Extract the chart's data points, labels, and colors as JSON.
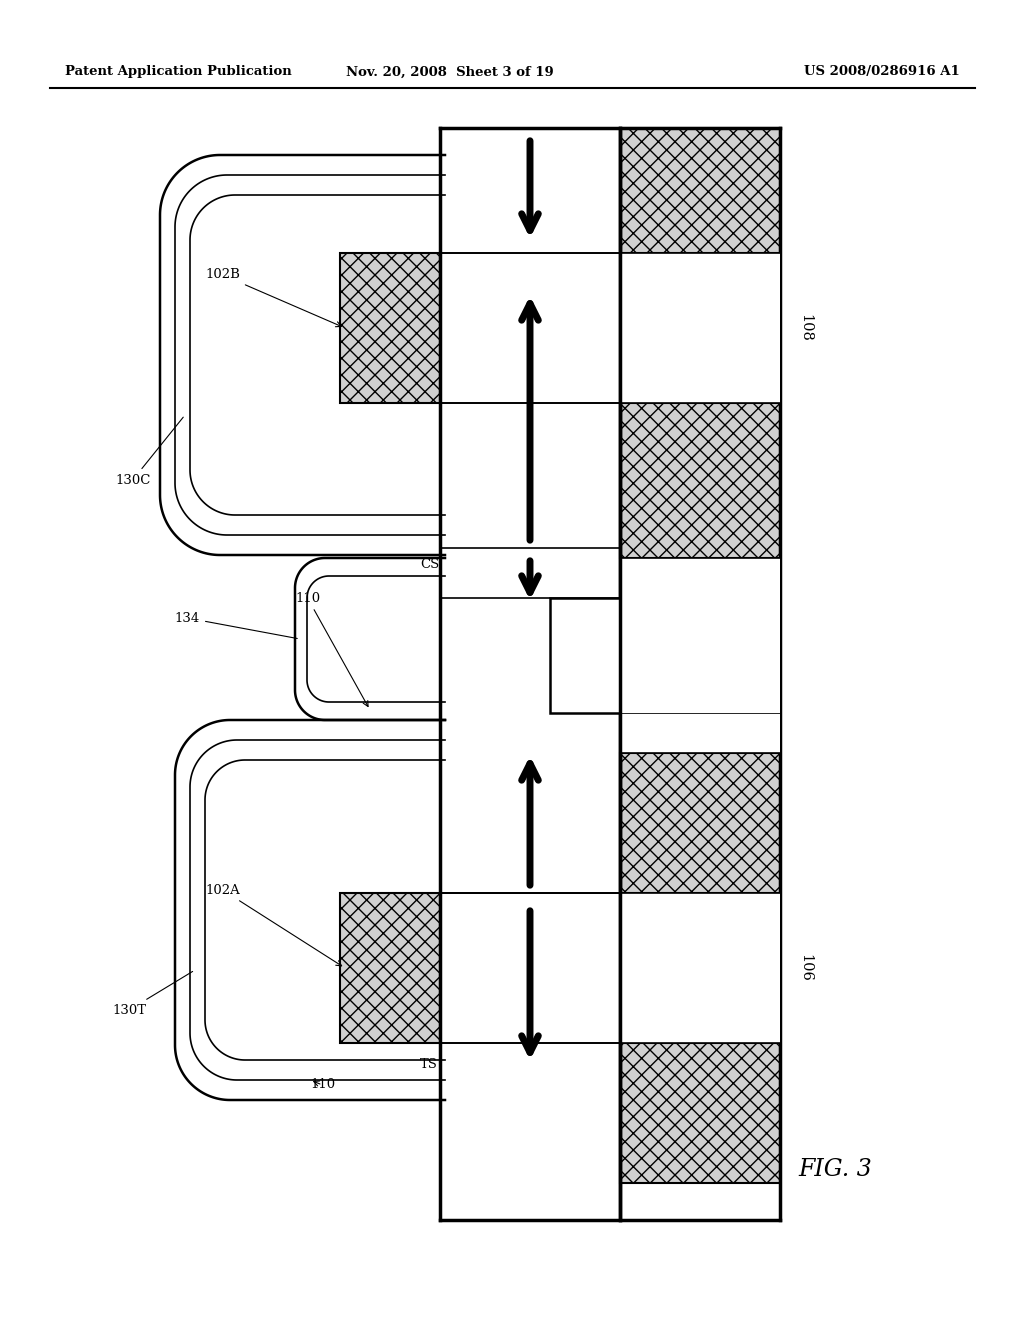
{
  "title_left": "Patent Application Publication",
  "title_mid": "Nov. 20, 2008  Sheet 3 of 19",
  "title_right": "US 2008/0286916 A1",
  "fig_label": "FIG. 3",
  "bg_color": "#ffffff",
  "lw_thin": 1.2,
  "lw_med": 1.8,
  "lw_thick": 2.5,
  "lw_arrow": 5.0
}
